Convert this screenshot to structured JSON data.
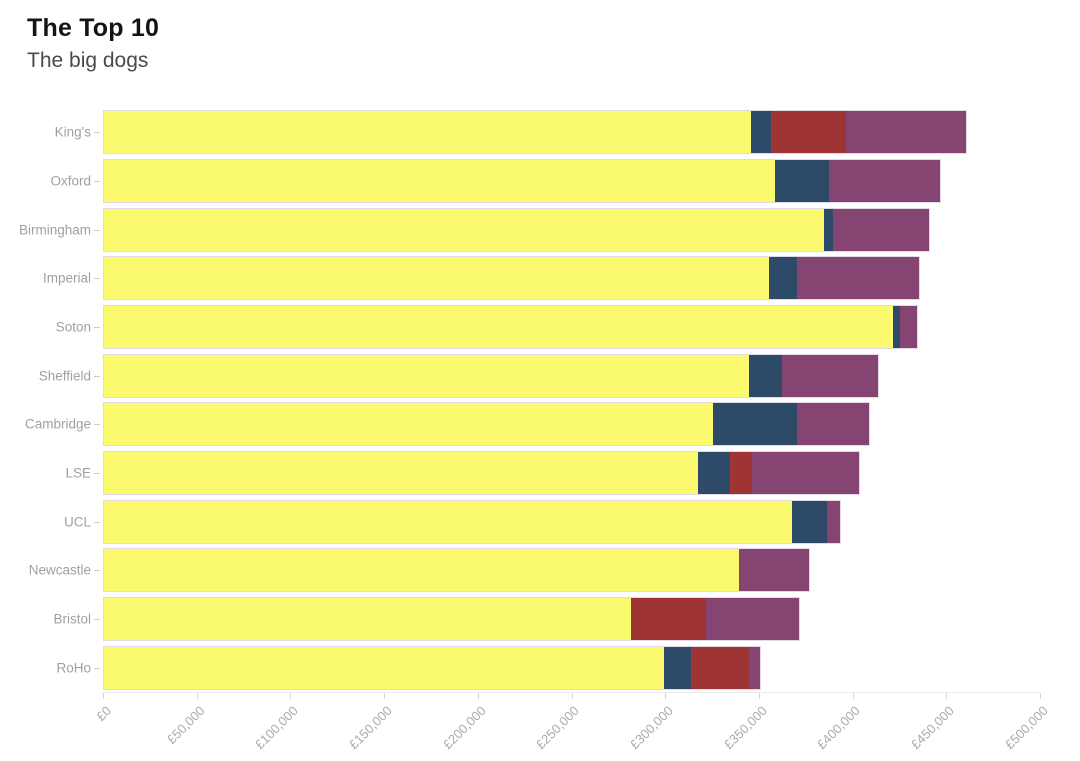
{
  "chart_data": {
    "type": "bar",
    "stacked": true,
    "orientation": "horizontal",
    "title": "The Top 10",
    "subtitle": "The big dogs",
    "categories": [
      "King's",
      "Oxford",
      "Birmingham",
      "Imperial",
      "Soton",
      "Sheffield",
      "Cambridge",
      "LSE",
      "UCL",
      "Newcastle",
      "Bristol",
      "RoHo"
    ],
    "series": [
      {
        "name": "yellow-segment",
        "color": "#fbf96d",
        "values": [
          345000,
          358000,
          384000,
          355000,
          421000,
          344000,
          325000,
          317000,
          367000,
          339000,
          281000,
          299000
        ]
      },
      {
        "name": "navy-segment",
        "color": "#2e4a69",
        "values": [
          11000,
          29000,
          5000,
          15000,
          4000,
          18000,
          45000,
          17000,
          19000,
          0,
          0,
          14000
        ]
      },
      {
        "name": "red-segment",
        "color": "#9e3534",
        "values": [
          40000,
          0,
          0,
          0,
          0,
          0,
          0,
          12000,
          0,
          0,
          40000,
          31000
        ]
      },
      {
        "name": "purple-segment",
        "color": "#864473",
        "values": [
          64000,
          59000,
          51000,
          65000,
          9000,
          51000,
          38000,
          57000,
          7000,
          37000,
          50000,
          6000
        ]
      }
    ],
    "totals": [
      460000,
      446000,
      440000,
      435000,
      434000,
      413000,
      408000,
      403000,
      393000,
      376000,
      371000,
      350000
    ],
    "x_ticks": [
      "£0",
      "£50,000",
      "£100,000",
      "£150,000",
      "£200,000",
      "£250,000",
      "£300,000",
      "£350,000",
      "£400,000",
      "£450,000",
      "£500,000"
    ],
    "x_tick_values": [
      0,
      50000,
      100000,
      150000,
      200000,
      250000,
      300000,
      350000,
      400000,
      450000,
      500000
    ],
    "xlim": [
      0,
      500000
    ],
    "grid": false,
    "legend": "none"
  }
}
